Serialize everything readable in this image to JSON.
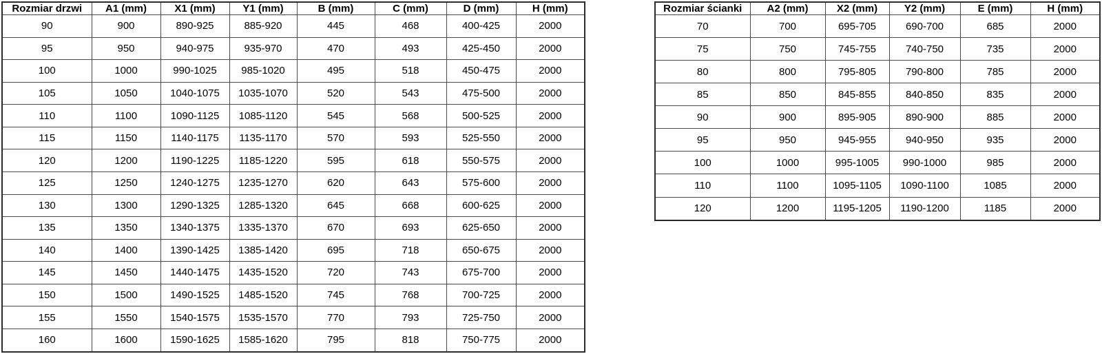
{
  "door_table": {
    "name": "door-size-table",
    "headers": [
      "Rozmiar drzwi",
      "A1 (mm)",
      "X1 (mm)",
      "Y1 (mm)",
      "B (mm)",
      "C (mm)",
      "D (mm)",
      "H (mm)"
    ],
    "rows": [
      [
        "90",
        "900",
        "890-925",
        "885-920",
        "445",
        "468",
        "400-425",
        "2000"
      ],
      [
        "95",
        "950",
        "940-975",
        "935-970",
        "470",
        "493",
        "425-450",
        "2000"
      ],
      [
        "100",
        "1000",
        "990-1025",
        "985-1020",
        "495",
        "518",
        "450-475",
        "2000"
      ],
      [
        "105",
        "1050",
        "1040-1075",
        "1035-1070",
        "520",
        "543",
        "475-500",
        "2000"
      ],
      [
        "110",
        "1100",
        "1090-1125",
        "1085-1120",
        "545",
        "568",
        "500-525",
        "2000"
      ],
      [
        "115",
        "1150",
        "1140-1175",
        "1135-1170",
        "570",
        "593",
        "525-550",
        "2000"
      ],
      [
        "120",
        "1200",
        "1190-1225",
        "1185-1220",
        "595",
        "618",
        "550-575",
        "2000"
      ],
      [
        "125",
        "1250",
        "1240-1275",
        "1235-1270",
        "620",
        "643",
        "575-600",
        "2000"
      ],
      [
        "130",
        "1300",
        "1290-1325",
        "1285-1320",
        "645",
        "668",
        "600-625",
        "2000"
      ],
      [
        "135",
        "1350",
        "1340-1375",
        "1335-1370",
        "670",
        "693",
        "625-650",
        "2000"
      ],
      [
        "140",
        "1400",
        "1390-1425",
        "1385-1420",
        "695",
        "718",
        "650-675",
        "2000"
      ],
      [
        "145",
        "1450",
        "1440-1475",
        "1435-1520",
        "720",
        "743",
        "675-700",
        "2000"
      ],
      [
        "150",
        "1500",
        "1490-1525",
        "1485-1520",
        "745",
        "768",
        "700-725",
        "2000"
      ],
      [
        "155",
        "1550",
        "1540-1575",
        "1535-1570",
        "770",
        "793",
        "725-750",
        "2000"
      ],
      [
        "160",
        "1600",
        "1590-1625",
        "1585-1620",
        "795",
        "818",
        "750-775",
        "2000"
      ]
    ]
  },
  "wall_table": {
    "name": "wall-size-table",
    "headers": [
      "Rozmiar ścianki",
      "A2 (mm)",
      "X2 (mm)",
      "Y2 (mm)",
      "E (mm)",
      "H (mm)"
    ],
    "rows": [
      [
        "70",
        "700",
        "695-705",
        "690-700",
        "685",
        "2000"
      ],
      [
        "75",
        "750",
        "745-755",
        "740-750",
        "735",
        "2000"
      ],
      [
        "80",
        "800",
        "795-805",
        "790-800",
        "785",
        "2000"
      ],
      [
        "85",
        "850",
        "845-855",
        "840-850",
        "835",
        "2000"
      ],
      [
        "90",
        "900",
        "895-905",
        "890-900",
        "885",
        "2000"
      ],
      [
        "95",
        "950",
        "945-955",
        "940-950",
        "935",
        "2000"
      ],
      [
        "100",
        "1000",
        "995-1005",
        "990-1000",
        "985",
        "2000"
      ],
      [
        "110",
        "1100",
        "1095-1105",
        "1090-1100",
        "1085",
        "2000"
      ],
      [
        "120",
        "1200",
        "1195-1205",
        "1190-1200",
        "1185",
        "2000"
      ]
    ]
  }
}
